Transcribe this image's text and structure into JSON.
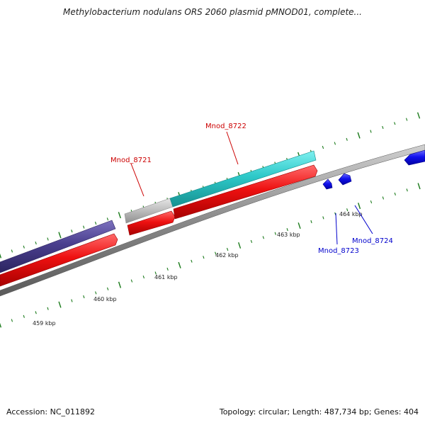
{
  "title": "Methylobacterium nodulans ORS 2060 plasmid pMNOD01, complete...",
  "ruler_ticks": [
    "459 kbp",
    "460 kbp",
    "461 kbp",
    "462 kbp",
    "463 kbp",
    "464 kbp"
  ],
  "gene_labels": [
    "Mnod_8721",
    "Mnod_8722",
    "Mnod_8723",
    "Mnod_8724"
  ],
  "colors": {
    "backbone": "#8a8a8a",
    "forward_gene": "#ee1111",
    "reverse_gene": "#1111ee",
    "cog_purple": "#4a3f8e",
    "cog_cyan": "#2ec9c9",
    "cog_gray": "#c0c0c0",
    "tick": "#1a7a1a",
    "label_forward": "#cc0000",
    "label_reverse": "#0000cc"
  },
  "footer": {
    "accession": "Accession: NC_011892",
    "summary": "Topology: circular; Length: 487,734 bp; Genes: 404"
  }
}
